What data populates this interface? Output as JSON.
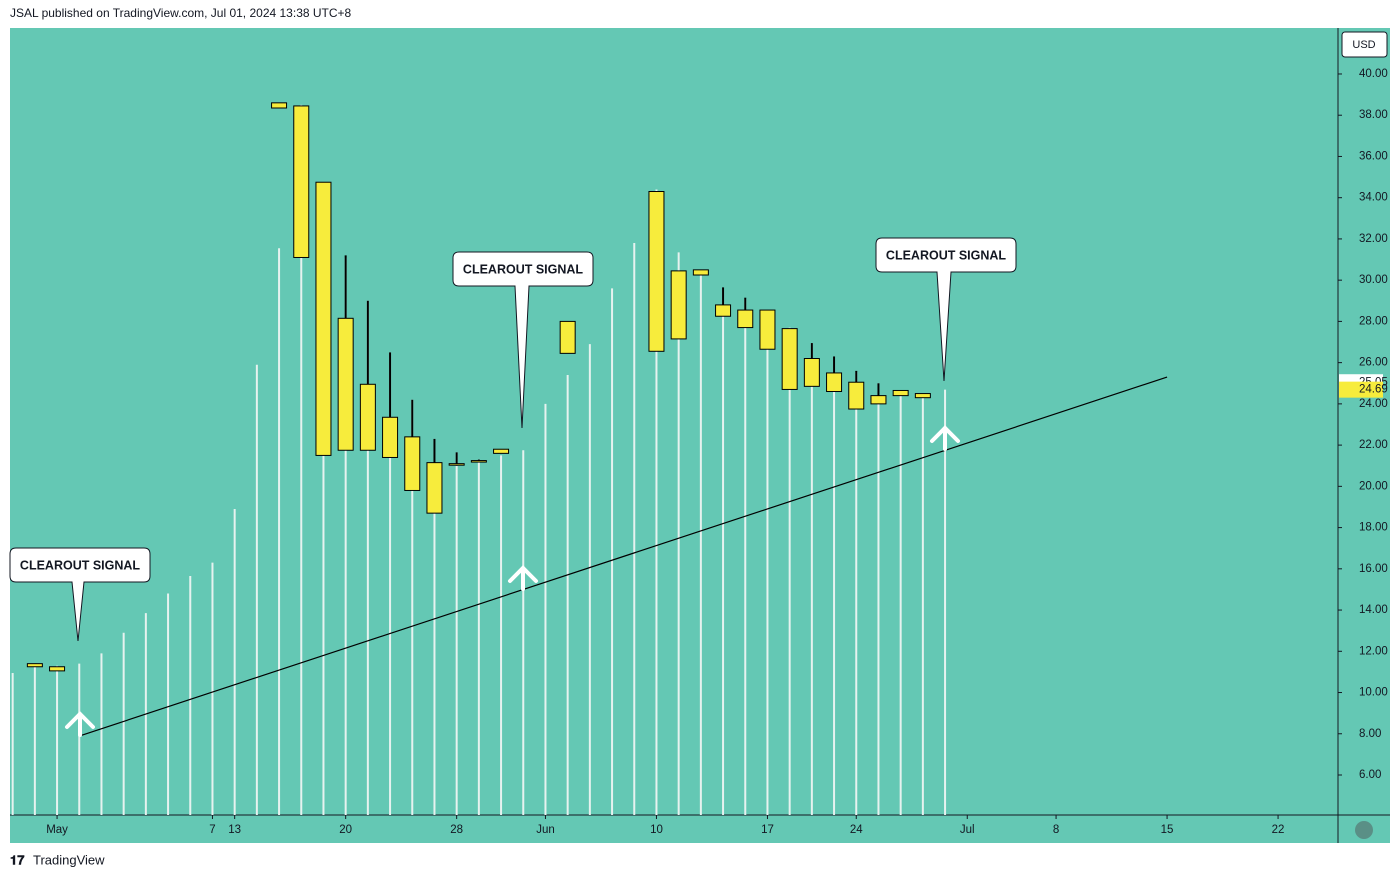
{
  "header": "JSAL published on TradingView.com, Jul 01, 2024 13:38 UTC+8",
  "footer": "TradingView",
  "chart_data": {
    "type": "candlestick",
    "currency": "USD",
    "x": [
      -2,
      -1,
      0,
      1,
      2,
      3,
      4,
      5,
      6,
      7,
      8,
      9,
      10,
      11,
      12,
      13,
      14,
      15,
      16,
      17,
      18,
      19,
      20,
      21,
      22,
      23,
      24,
      25,
      26,
      27,
      28,
      29,
      30,
      31,
      32,
      33,
      34,
      35,
      36,
      37,
      38,
      39,
      40
    ],
    "open": [
      null,
      11.4,
      11.25,
      null,
      null,
      null,
      null,
      null,
      null,
      null,
      null,
      null,
      38.6,
      38.45,
      34.75,
      28.15,
      24.95,
      23.35,
      22.4,
      21.15,
      21.1,
      21.25,
      21.6,
      null,
      null,
      28.0,
      null,
      null,
      null,
      34.3,
      30.45,
      30.5,
      28.8,
      28.55,
      28.55,
      27.65,
      26.2,
      25.5,
      25.05,
      24.4,
      24.65,
      24.5,
      null
    ],
    "high": [
      null,
      11.4,
      11.25,
      null,
      null,
      null,
      null,
      null,
      null,
      null,
      null,
      null,
      38.6,
      38.45,
      34.75,
      31.2,
      29.0,
      26.5,
      24.2,
      22.3,
      21.65,
      21.3,
      21.8,
      null,
      null,
      28.0,
      null,
      null,
      null,
      34.3,
      30.45,
      30.5,
      29.65,
      29.15,
      28.55,
      27.65,
      26.95,
      26.3,
      25.6,
      25.0,
      24.65,
      24.5,
      null
    ],
    "low": [
      null,
      11.25,
      11.05,
      null,
      null,
      null,
      null,
      null,
      null,
      null,
      null,
      null,
      38.35,
      31.1,
      21.5,
      21.75,
      21.75,
      21.4,
      19.8,
      18.7,
      21.0,
      21.2,
      21.6,
      null,
      null,
      26.45,
      null,
      null,
      null,
      26.55,
      27.15,
      30.25,
      28.25,
      27.7,
      26.65,
      24.7,
      24.85,
      24.6,
      23.75,
      24.0,
      24.4,
      24.3,
      null
    ],
    "close": [
      null,
      11.25,
      11.05,
      null,
      null,
      null,
      null,
      null,
      null,
      null,
      null,
      null,
      38.35,
      31.1,
      21.5,
      21.75,
      21.75,
      21.4,
      19.8,
      18.7,
      21.1,
      21.25,
      21.8,
      null,
      null,
      26.45,
      null,
      null,
      null,
      26.55,
      27.15,
      30.25,
      28.25,
      27.7,
      26.65,
      24.7,
      24.85,
      24.6,
      23.75,
      24.0,
      24.4,
      24.3,
      null
    ],
    "values": [
      10.95,
      11.4,
      11.3,
      11.4,
      11.9,
      12.9,
      13.85,
      14.8,
      15.65,
      16.3,
      18.9,
      25.9,
      31.55,
      38.5,
      34.75,
      31.1,
      29.0,
      26.5,
      24.2,
      22.3,
      21.65,
      21.3,
      21.5,
      21.75,
      24.0,
      25.4,
      26.9,
      29.6,
      31.8,
      34.4,
      31.35,
      30.5,
      29.6,
      29.1,
      28.55,
      27.7,
      26.95,
      26.3,
      25.55,
      25.0,
      24.65,
      24.5,
      24.69
    ],
    "candle_color": "#f7ec3c",
    "line_color": "#e6f2ef",
    "trendline": {
      "x": [
        1,
        50
      ],
      "y": [
        7.89,
        25.3
      ]
    },
    "annotations": [
      "CLEAROUT SIGNAL",
      "CLEAROUT SIGNAL",
      "CLEAROUT SIGNAL"
    ],
    "price_labels": [
      {
        "value": 25.05,
        "label": "25.05"
      },
      {
        "value": 24.69,
        "label": "24.69"
      }
    ],
    "xlim": [
      -2.12,
      57.7
    ],
    "xticks": [
      {
        "value": 0,
        "label": "May"
      },
      7,
      {
        "value": 8,
        "label": "13"
      },
      {
        "value": 13,
        "label": "20"
      },
      {
        "value": 18,
        "label": "28"
      },
      {
        "value": 22,
        "label": "Jun"
      },
      {
        "value": 27,
        "label": "10"
      },
      {
        "value": 32,
        "label": "17"
      },
      {
        "value": 36,
        "label": "24"
      },
      {
        "value": 41,
        "label": "Jul"
      },
      {
        "value": 45,
        "label": "8"
      },
      {
        "value": 50,
        "label": "15"
      },
      {
        "value": 55,
        "label": "22"
      }
    ],
    "ylim": [
      4.06,
      42.23
    ],
    "yticks": [
      {
        "value": 6,
        "label": "6.00"
      },
      {
        "value": 8,
        "label": "8.00"
      },
      {
        "value": 10,
        "label": "10.00"
      },
      {
        "value": 12,
        "label": "12.00"
      },
      {
        "value": 14,
        "label": "14.00"
      },
      {
        "value": 16,
        "label": "16.00"
      },
      {
        "value": 18,
        "label": "18.00"
      },
      {
        "value": 20,
        "label": "20.00"
      },
      {
        "value": 22,
        "label": "22.00"
      },
      {
        "value": 24,
        "label": "24.00"
      },
      {
        "value": 26,
        "label": "26.00"
      },
      {
        "value": 28,
        "label": "28.00"
      },
      {
        "value": 30,
        "label": "30.00"
      },
      {
        "value": 32,
        "label": "32.00"
      },
      {
        "value": 34,
        "label": "34.00"
      },
      {
        "value": 36,
        "label": "36.00"
      },
      {
        "value": 38,
        "label": "38.00"
      },
      {
        "value": 40,
        "label": "40.00"
      }
    ]
  }
}
